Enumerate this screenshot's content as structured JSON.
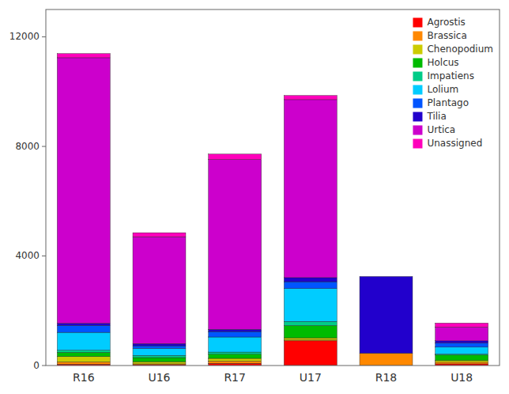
{
  "chart_data": {
    "type": "bar",
    "stacked": true,
    "categories": [
      "R16",
      "U16",
      "R17",
      "U17",
      "R18",
      "U18"
    ],
    "series": [
      {
        "name": "Agrostis",
        "color": "#FF0000",
        "values": [
          50,
          30,
          80,
          900,
          0,
          60
        ]
      },
      {
        "name": "Brassica",
        "color": "#FF8800",
        "values": [
          80,
          30,
          80,
          30,
          450,
          60
        ]
      },
      {
        "name": "Chenopodium",
        "color": "#CCCC00",
        "values": [
          200,
          80,
          100,
          80,
          0,
          60
        ]
      },
      {
        "name": "Holcus",
        "color": "#00BB00",
        "values": [
          150,
          150,
          150,
          450,
          0,
          200
        ]
      },
      {
        "name": "Impatiens",
        "color": "#00CC88",
        "values": [
          80,
          80,
          80,
          150,
          0,
          40
        ]
      },
      {
        "name": "Lolium",
        "color": "#00CCFF",
        "values": [
          650,
          250,
          550,
          1200,
          0,
          250
        ]
      },
      {
        "name": "Plantago",
        "color": "#0055FF",
        "values": [
          250,
          100,
          200,
          250,
          0,
          150
        ]
      },
      {
        "name": "Tilia",
        "color": "#2200CC",
        "values": [
          80,
          80,
          80,
          150,
          2800,
          80
        ]
      },
      {
        "name": "Urtica",
        "color": "#CC00CC",
        "values": [
          9700,
          3900,
          6200,
          6500,
          0,
          500
        ]
      },
      {
        "name": "Unassigned",
        "color": "#FF00BB",
        "values": [
          150,
          150,
          200,
          150,
          0,
          150
        ]
      }
    ],
    "ylim": [
      0,
      13000
    ],
    "yticks": [
      0,
      4000,
      8000,
      12000
    ],
    "grid": false,
    "legend": "upper right"
  }
}
